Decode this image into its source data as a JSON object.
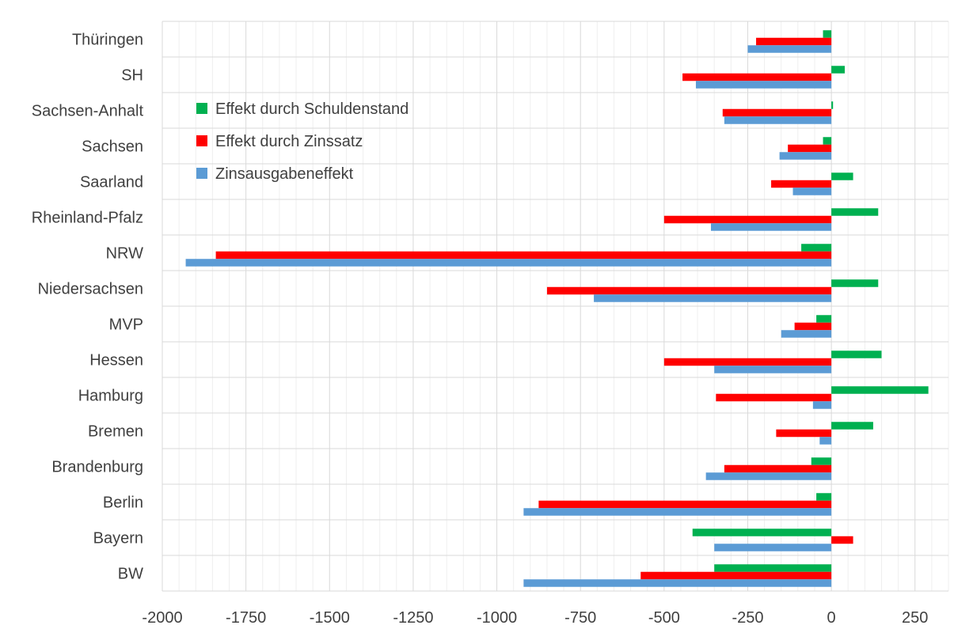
{
  "chart_data": {
    "type": "bar",
    "orientation": "horizontal",
    "categories": [
      "Thüringen",
      "SH",
      "Sachsen-Anhalt",
      "Sachsen",
      "Saarland",
      "Rheinland-Pfalz",
      "NRW",
      "Niedersachsen",
      "MVP",
      "Hessen",
      "Hamburg",
      "Bremen",
      "Brandenburg",
      "Berlin",
      "Bayern",
      "BW"
    ],
    "series": [
      {
        "name": "Effekt durch Schuldenstand",
        "color": "#00b050",
        "values": [
          -25,
          40,
          5,
          -25,
          65,
          140,
          -90,
          140,
          -45,
          150,
          290,
          125,
          -60,
          -45,
          -415,
          -350
        ]
      },
      {
        "name": "Effekt durch Zinssatz",
        "color": "#ff0000",
        "values": [
          -225,
          -445,
          -325,
          -130,
          -180,
          -500,
          -1840,
          -850,
          -110,
          -500,
          -345,
          -165,
          -320,
          -875,
          65,
          -570
        ]
      },
      {
        "name": "Zinsausgabeneffekt",
        "color": "#5b9bd5",
        "values": [
          -250,
          -405,
          -320,
          -155,
          -115,
          -360,
          -1930,
          -710,
          -150,
          -350,
          -55,
          -35,
          -375,
          -920,
          -350,
          -920
        ]
      }
    ],
    "xlim": [
      -2000,
      350
    ],
    "xticks": [
      -2000,
      -1750,
      -1500,
      -1250,
      -1000,
      -750,
      -500,
      -250,
      0,
      250
    ],
    "xtick_labels": [
      "-2000",
      "-1750",
      "-1500",
      "-1250",
      "-1000",
      "-750",
      "-500",
      "-250",
      "0",
      "250"
    ],
    "grid": true,
    "legend_position": "upper-left inside plot",
    "title": "",
    "xlabel": "",
    "ylabel": ""
  }
}
